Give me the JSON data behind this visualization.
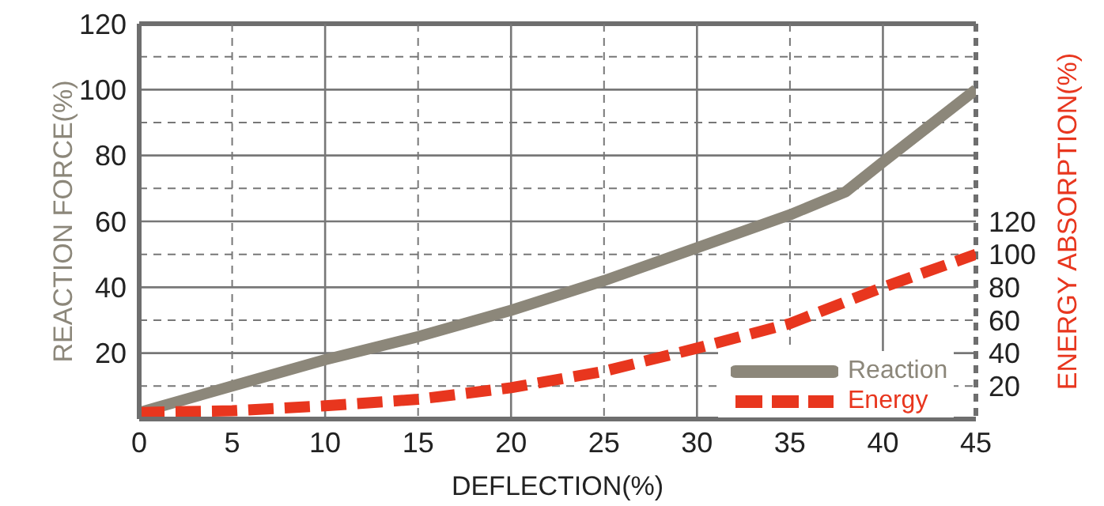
{
  "chart_data": {
    "type": "line",
    "xlabel": "DEFLECTION(%)",
    "ylabel": "REACTION FORCE(%)",
    "y2label": "ENERGY ABSORPTION(%)",
    "xlim": [
      0,
      45
    ],
    "xticks": [
      0,
      5,
      10,
      15,
      20,
      25,
      30,
      35,
      40,
      45
    ],
    "ylim": [
      0,
      120
    ],
    "yticks": [
      {
        "value": 0,
        "label": null
      },
      {
        "value": 10,
        "label": null
      },
      20,
      {
        "value": 30,
        "label": null
      },
      40,
      {
        "value": 50,
        "label": null
      },
      60,
      {
        "value": 70,
        "label": null
      },
      80,
      {
        "value": 90,
        "label": null
      },
      100,
      {
        "value": 110,
        "label": null
      },
      120
    ],
    "y2lim": [
      0,
      240
    ],
    "y2ticks": [
      20,
      40,
      60,
      80,
      100,
      120
    ],
    "grid": true,
    "legend": "bottom right",
    "marker": "none",
    "series": [
      {
        "name": "Reaction",
        "color": "#8c877a",
        "line_style": "solid",
        "x": [
          0,
          5,
          10,
          15,
          20,
          25,
          30,
          35,
          38,
          40,
          45
        ],
        "values": [
          2,
          10,
          18,
          25,
          33,
          42,
          52,
          62,
          69,
          78,
          100
        ]
      },
      {
        "name": "Energy",
        "color": "#e8361e",
        "line_style": "dashed",
        "axis": "y2",
        "x": [
          0,
          5,
          10,
          15,
          20,
          25,
          30,
          35,
          40,
          45
        ],
        "values": [
          4,
          5,
          8,
          12,
          19,
          29,
          43,
          58,
          80,
          100
        ]
      }
    ]
  }
}
